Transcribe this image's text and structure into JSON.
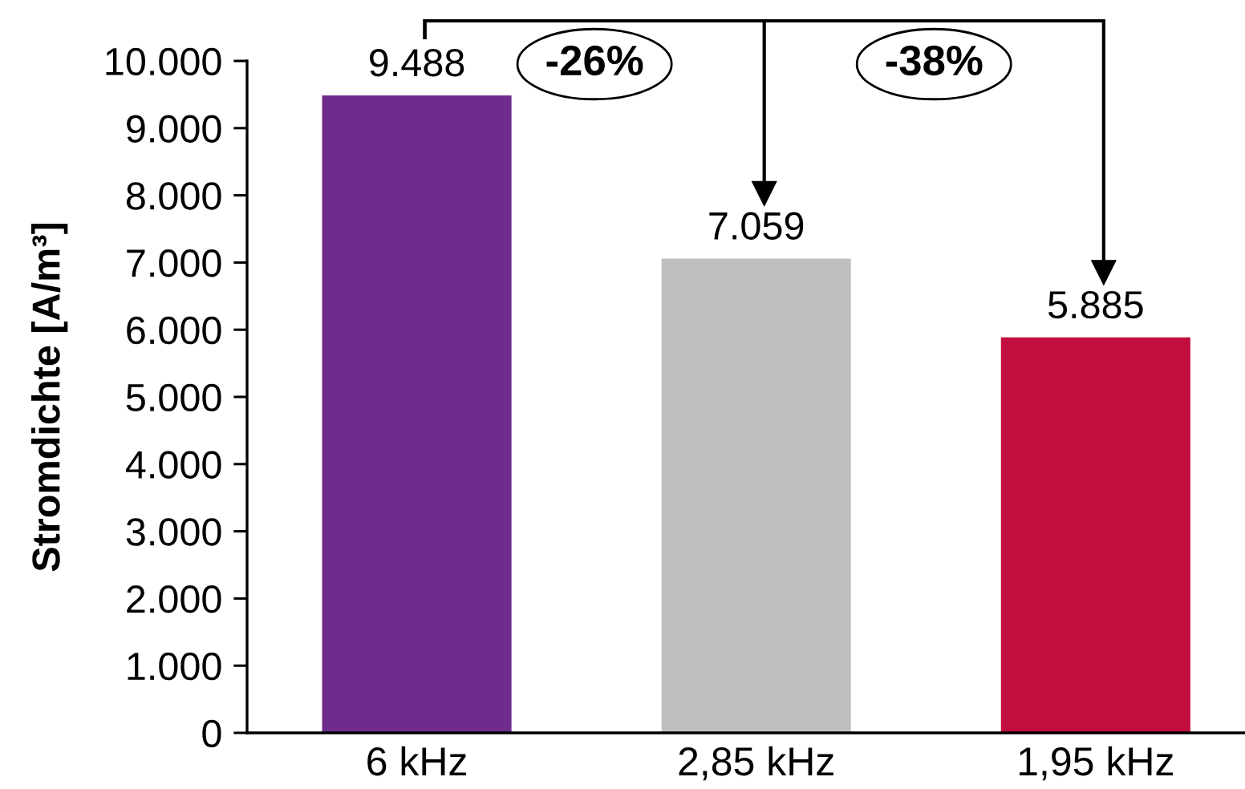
{
  "chart_data": {
    "type": "bar",
    "categories": [
      "6 kHz",
      "2,85 kHz",
      "1,95 kHz"
    ],
    "values": [
      9488,
      7059,
      5885
    ],
    "colors": [
      "#6f2c8c",
      "#bfbfbf",
      "#c10e3e"
    ],
    "value_labels": [
      "9.488",
      "7.059",
      "5.885"
    ],
    "ylabel": "Stromdichte [A/m³]",
    "ylim": [
      0,
      10000
    ],
    "yticks": [
      0,
      {
        "value": 1000,
        "label": "1.000"
      },
      {
        "value": 2000,
        "label": "2.000"
      },
      {
        "value": 3000,
        "label": "3.000"
      },
      {
        "value": 4000,
        "label": "4.000"
      },
      {
        "value": 5000,
        "label": "5.000"
      },
      {
        "value": 6000,
        "label": "6.000"
      },
      {
        "value": 7000,
        "label": "7.000"
      },
      {
        "value": 8000,
        "label": "8.000"
      },
      {
        "value": 9000,
        "label": "9.000"
      },
      {
        "value": 10000,
        "label": "10.000"
      }
    ],
    "grid": false,
    "annotations": [
      "-26%",
      "-38%"
    ]
  }
}
